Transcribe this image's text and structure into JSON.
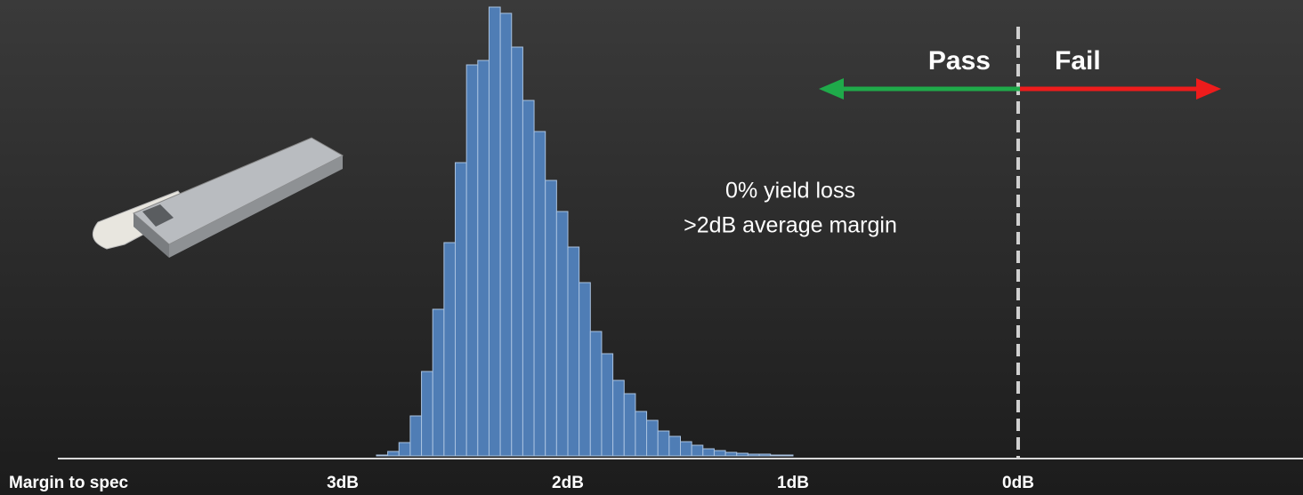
{
  "chart_data": {
    "type": "histogram",
    "xlabel": "Margin to spec",
    "xlim": [
      4.265,
      -1.265
    ],
    "xticks": [
      {
        "value": 3,
        "label": "3dB"
      },
      {
        "value": 2,
        "label": "2dB"
      },
      {
        "value": 1,
        "label": "1dB"
      },
      {
        "value": 0,
        "label": "0dB"
      }
    ],
    "ylim": [
      0,
      505
    ],
    "bins": [
      2.85,
      2.8,
      2.75,
      2.7,
      2.65,
      2.6,
      2.55,
      2.5,
      2.45,
      2.4,
      2.35,
      2.3,
      2.25,
      2.2,
      2.15,
      2.1,
      2.05,
      2.0,
      1.95,
      1.9,
      1.85,
      1.8,
      1.75,
      1.7,
      1.65,
      1.6,
      1.55,
      1.5,
      1.45,
      1.4,
      1.35,
      1.3,
      1.25,
      1.2,
      1.15,
      1.1,
      1.05,
      1.0
    ],
    "counts": [
      1,
      5,
      15,
      45,
      95,
      165,
      240,
      330,
      440,
      445,
      505,
      498,
      460,
      400,
      365,
      310,
      275,
      235,
      195,
      140,
      115,
      85,
      70,
      50,
      40,
      28,
      22,
      16,
      12,
      8,
      6,
      4,
      3,
      2,
      2,
      1,
      1
    ],
    "color": "#4f7db5",
    "annotations": [
      "0% yield loss",
      ">2dB average margin"
    ],
    "pass_label": "Pass",
    "fail_label": "Fail"
  }
}
